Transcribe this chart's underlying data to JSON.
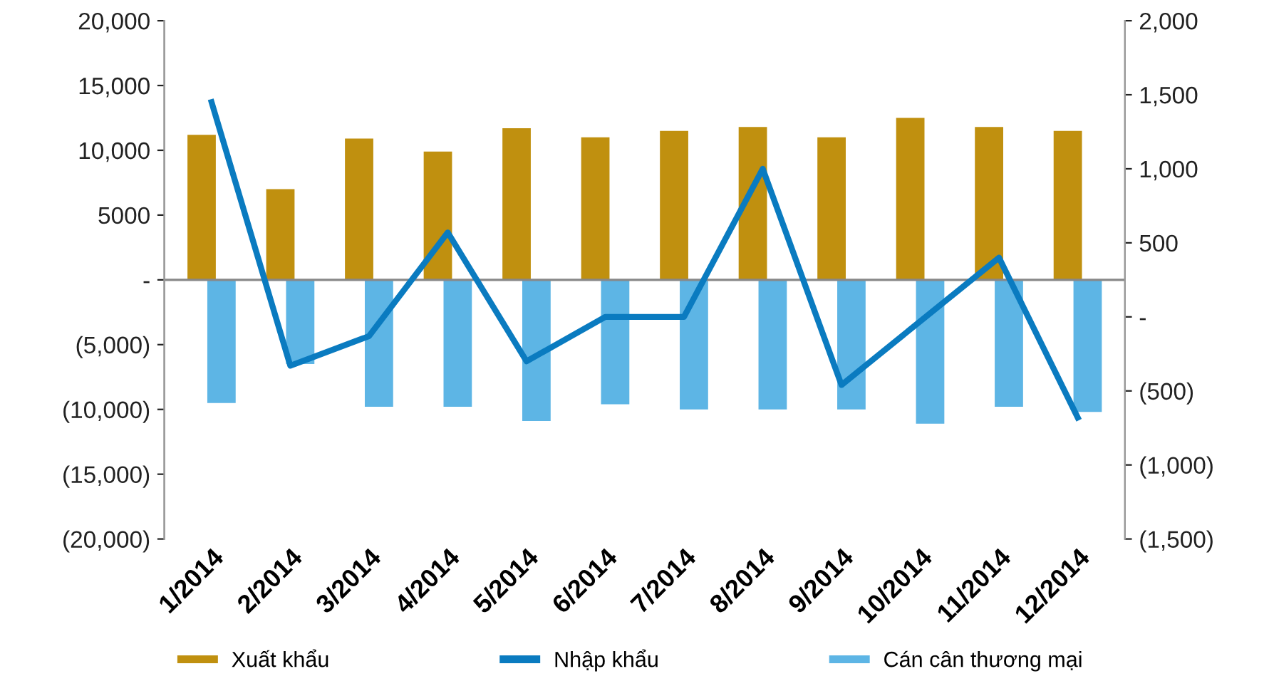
{
  "chart_data": {
    "type": "bar",
    "categories": [
      "1/2014",
      "2/2014",
      "3/2014",
      "4/2014",
      "5/2014",
      "6/2014",
      "7/2014",
      "8/2014",
      "9/2014",
      "10/2014",
      "11/2014",
      "12/2014"
    ],
    "series": [
      {
        "name": "Xuất khẩu",
        "color": "#c0900f",
        "values": [
          11200,
          7000,
          10900,
          9900,
          11700,
          11000,
          11500,
          11800,
          11000,
          12500,
          11800,
          11500
        ]
      },
      {
        "name": "Nhập khẩu",
        "type": "line",
        "axis": "y2",
        "color": "#0a7bc0",
        "values": [
          1450,
          -330,
          -130,
          570,
          -300,
          0,
          0,
          1000,
          -460,
          -30,
          400,
          -680
        ]
      },
      {
        "name": "Cán cân thương mại",
        "color": "#5db5e5",
        "values": [
          -9500,
          -6500,
          -9800,
          -9800,
          -10900,
          -9600,
          -10000,
          -10000,
          -10000,
          -11100,
          -9800,
          -10200
        ]
      }
    ],
    "ylim": [
      -20000,
      20000
    ],
    "yticks": [
      {
        "value": 20000,
        "label": "20,000"
      },
      {
        "value": 15000,
        "label": "15,000"
      },
      {
        "value": 10000,
        "label": "10,000"
      },
      {
        "value": 5000,
        "label": "5000"
      },
      {
        "value": 0,
        "label": "-"
      },
      {
        "value": -5000,
        "label": "(5,000)"
      },
      {
        "value": -10000,
        "label": "(10,000)"
      },
      {
        "value": -15000,
        "label": "(15,000)"
      },
      {
        "value": -20000,
        "label": "(20,000)"
      }
    ],
    "y2lim": [
      -1500,
      2000
    ],
    "y2ticks": [
      {
        "value": 2000,
        "label": "2,000"
      },
      {
        "value": 1500,
        "label": "1,500"
      },
      {
        "value": 1000,
        "label": "1,000"
      },
      {
        "value": 500,
        "label": "500"
      },
      {
        "value": 0,
        "label": "-"
      },
      {
        "value": -500,
        "label": "(500)"
      },
      {
        "value": -1000,
        "label": "(1,000)"
      },
      {
        "value": -1500,
        "label": "(1,500)"
      }
    ],
    "ref_lines": [
      {
        "axis": "y",
        "value": 0,
        "color": "#888888"
      }
    ],
    "legend": "bottom",
    "grid": false,
    "marker": "none",
    "line_style": "solid"
  }
}
